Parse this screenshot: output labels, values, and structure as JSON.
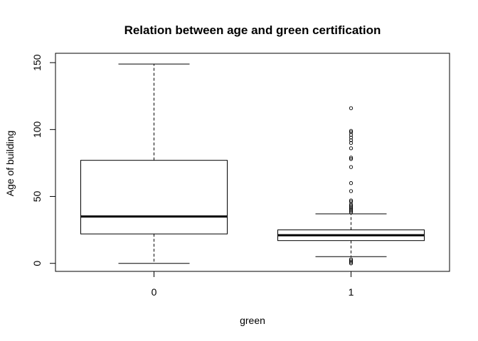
{
  "chart_data": {
    "type": "boxplot",
    "title": "Relation between age and green certification",
    "xlabel": "green",
    "ylabel": "Age of building",
    "categories": [
      "0",
      "1"
    ],
    "y_ticks": [
      0,
      50,
      100,
      150
    ],
    "y_tick_labels": [
      "0",
      "50",
      "100",
      "150"
    ],
    "ylim": [
      -6,
      157
    ],
    "grid": false,
    "legend": "none",
    "boxes": [
      {
        "category": "0",
        "whisker_low": 0,
        "q1": 22,
        "median": 35,
        "q3": 77,
        "whisker_high": 149,
        "outliers": []
      },
      {
        "category": "1",
        "whisker_low": 5,
        "q1": 17,
        "median": 21,
        "q3": 25,
        "whisker_high": 37,
        "outliers": [
          0,
          1,
          2,
          3,
          38,
          39,
          40,
          41,
          42,
          43,
          44,
          46,
          47,
          54,
          60,
          72,
          78,
          79,
          86,
          90,
          92,
          94,
          96,
          98,
          99,
          116
        ]
      }
    ]
  }
}
